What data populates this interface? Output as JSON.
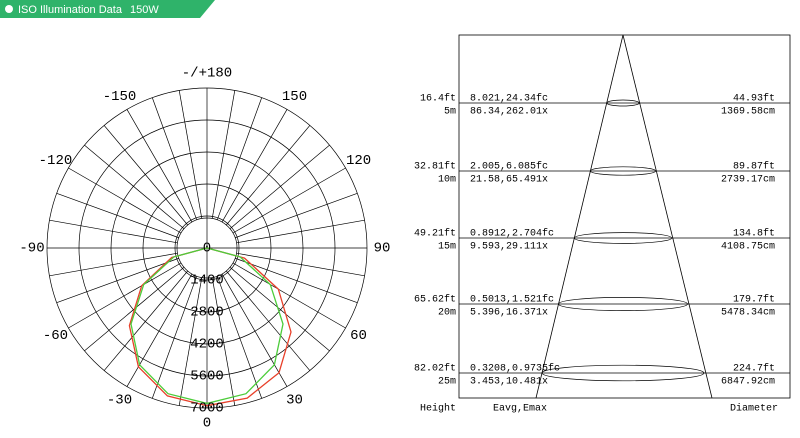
{
  "header": {
    "title": "ISO Illumination Data",
    "power": "150W"
  },
  "chart_data": {
    "type": "polar",
    "angle_ticks": [
      {
        "value": -180,
        "label": "-/+180"
      },
      -150,
      150,
      -120,
      120,
      -90,
      90,
      -60,
      60,
      -30,
      30,
      0
    ],
    "rticks": [
      0,
      1400,
      2800,
      4200,
      5600,
      7000
    ],
    "rlim": [
      0,
      7000
    ],
    "x": [
      -90,
      -75,
      -60,
      -45,
      -30,
      -15,
      0,
      15,
      30,
      45,
      60,
      75,
      90
    ],
    "series": [
      {
        "color": "#e8402a",
        "values": [
          0,
          1600,
          3300,
          4800,
          6000,
          6700,
          6900,
          6800,
          6300,
          5200,
          3600,
          1700,
          0
        ]
      },
      {
        "color": "#4ccc3a",
        "values": [
          0,
          1500,
          3200,
          4700,
          5900,
          6600,
          6800,
          6600,
          5900,
          4700,
          3200,
          1500,
          0
        ]
      }
    ]
  },
  "cone": {
    "rows": [
      {
        "height_ft": "16.4ft",
        "height_m": "5m",
        "fc": "8.021,24.34fc",
        "lx": "86.34,262.01x",
        "diameter_ft": "44.93ft",
        "diameter_cm": "1369.58cm"
      },
      {
        "height_ft": "32.81ft",
        "height_m": "10m",
        "fc": "2.005,6.085fc",
        "lx": "21.58,65.491x",
        "diameter_ft": "89.87ft",
        "diameter_cm": "2739.17cm"
      },
      {
        "height_ft": "49.21ft",
        "height_m": "15m",
        "fc": "0.8912,2.704fc",
        "lx": "9.593,29.111x",
        "diameter_ft": "134.8ft",
        "diameter_cm": "4108.75cm"
      },
      {
        "height_ft": "65.62ft",
        "height_m": "20m",
        "fc": "0.5013,1.521fc",
        "lx": "5.396,16.371x",
        "diameter_ft": "179.7ft",
        "diameter_cm": "5478.34cm"
      },
      {
        "height_ft": "82.02ft",
        "height_m": "25m",
        "fc": "0.3208,0.9735fc",
        "lx": "3.453,10.481x",
        "diameter_ft": "224.7ft",
        "diameter_cm": "6847.92cm"
      }
    ],
    "footer": {
      "height": "Height",
      "values": "Eavg,Emax",
      "diameter": "Diameter"
    }
  }
}
